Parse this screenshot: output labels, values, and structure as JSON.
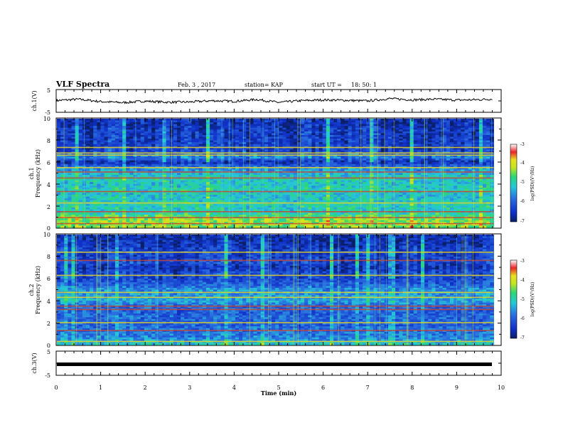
{
  "header": {
    "title": "VLF Spectra",
    "date": "Feb. 3 , 2017",
    "station": "station= KAP",
    "start": "start UT =",
    "start_time": "18: 50: 1"
  },
  "colors": {
    "background": "#ffffff",
    "axis": "#000000",
    "colormap": [
      "#0a1f66",
      "#1030c8",
      "#2a6fe0",
      "#25c8d8",
      "#2ad67a",
      "#c4e420",
      "#e8e020",
      "#e9262a",
      "#5a1f6a"
    ]
  },
  "chart_data": [
    {
      "type": "line",
      "name": "ch1-waveform",
      "ylabel": "ch.1(V)",
      "yticks": [
        "5",
        "-5"
      ],
      "ylim": [
        -5,
        5
      ],
      "xlim": [
        0,
        10
      ],
      "x": [
        0.0,
        0.5,
        1.0,
        1.5,
        2.0,
        2.5,
        3.0,
        3.5,
        4.0,
        4.5,
        5.0,
        5.5,
        6.0,
        6.5,
        7.0,
        7.5,
        8.0,
        8.5,
        9.0,
        9.5,
        9.8
      ],
      "values": [
        0.2,
        0.8,
        -0.3,
        -0.8,
        -0.1,
        -0.6,
        -0.5,
        0.1,
        -0.2,
        0.7,
        -0.7,
        0.1,
        0.5,
        0.3,
        0.0,
        1.1,
        0.5,
        0.8,
        0.4,
        0.6,
        0.9
      ]
    },
    {
      "type": "heatmap",
      "name": "ch1-spectrogram",
      "ylabel_channel": "ch.1",
      "ylabel": "Frequency (kHz)",
      "yticks": [
        "0",
        "2",
        "4",
        "6",
        "8",
        "10"
      ],
      "ylim": [
        0,
        10
      ],
      "xlim": [
        0,
        9.83
      ],
      "colorbar": {
        "label": "log(PSD)(V²/Hz)",
        "ticks": [
          "-3",
          "-4",
          "-5",
          "-6",
          "-7"
        ],
        "range": [
          -7,
          -3
        ]
      },
      "freq_profile_khz": [
        0,
        0.5,
        1,
        1.5,
        2,
        2.5,
        3,
        3.5,
        4,
        4.5,
        5,
        5.5,
        6,
        6.5,
        7,
        7.5,
        8,
        8.5,
        9,
        9.5,
        10
      ],
      "freq_profile_logpsd": [
        -4.4,
        -4.3,
        -4.6,
        -5.1,
        -5.0,
        -5.1,
        -5.2,
        -5.0,
        -5.2,
        -5.0,
        -5.3,
        -5.7,
        -6.6,
        -5.6,
        -6.3,
        -6.3,
        -6.4,
        -6.4,
        -6.4,
        -6.6,
        -6.5
      ],
      "lines_khz": [
        0.35,
        0.9,
        1.45,
        2.25,
        3.3,
        4.55,
        5.1,
        5.5,
        6.65,
        6.85,
        7.35
      ],
      "title": ""
    },
    {
      "type": "heatmap",
      "name": "ch2-spectrogram",
      "ylabel_channel": "ch.2",
      "ylabel": "Frequency (kHz)",
      "yticks": [
        "0",
        "2",
        "4",
        "6",
        "8",
        "10"
      ],
      "ylim": [
        0,
        10
      ],
      "xlim": [
        0,
        9.83
      ],
      "colorbar": {
        "label": "log(PSD)(V²/Hz)",
        "ticks": [
          "-3",
          "-4",
          "-5",
          "-6",
          "-7"
        ],
        "range": [
          -7,
          -3
        ]
      },
      "freq_profile_khz": [
        0,
        0.5,
        1,
        1.5,
        2,
        2.5,
        3,
        3.5,
        4,
        4.5,
        5,
        5.5,
        6,
        6.5,
        7,
        7.5,
        8,
        8.5,
        9,
        9.5,
        10
      ],
      "freq_profile_logpsd": [
        -5.0,
        -5.6,
        -5.8,
        -5.9,
        -6.0,
        -5.9,
        -6.0,
        -5.9,
        -5.4,
        -5.5,
        -5.6,
        -6.0,
        -6.3,
        -6.2,
        -6.6,
        -6.2,
        -6.4,
        -6.3,
        -6.5,
        -6.6,
        -6.6
      ],
      "lines_khz": [
        0.3,
        1.3,
        2.0,
        3.2,
        3.5,
        4.3,
        4.75,
        6.3,
        7.65,
        8.4
      ],
      "title": ""
    },
    {
      "type": "line",
      "name": "ch3-waveform",
      "ylabel": "ch.3(V)",
      "yticks": [
        "5",
        "-5"
      ],
      "ylim": [
        -5,
        5
      ],
      "xlim": [
        0,
        10
      ],
      "x": [
        0,
        9.8
      ],
      "values": [
        -1.0,
        -1.0
      ]
    }
  ],
  "xaxis": {
    "label": "Time (min)",
    "ticks": [
      "0",
      "1",
      "2",
      "3",
      "4",
      "5",
      "6",
      "7",
      "8",
      "9",
      "10"
    ],
    "range": [
      0,
      10
    ]
  }
}
